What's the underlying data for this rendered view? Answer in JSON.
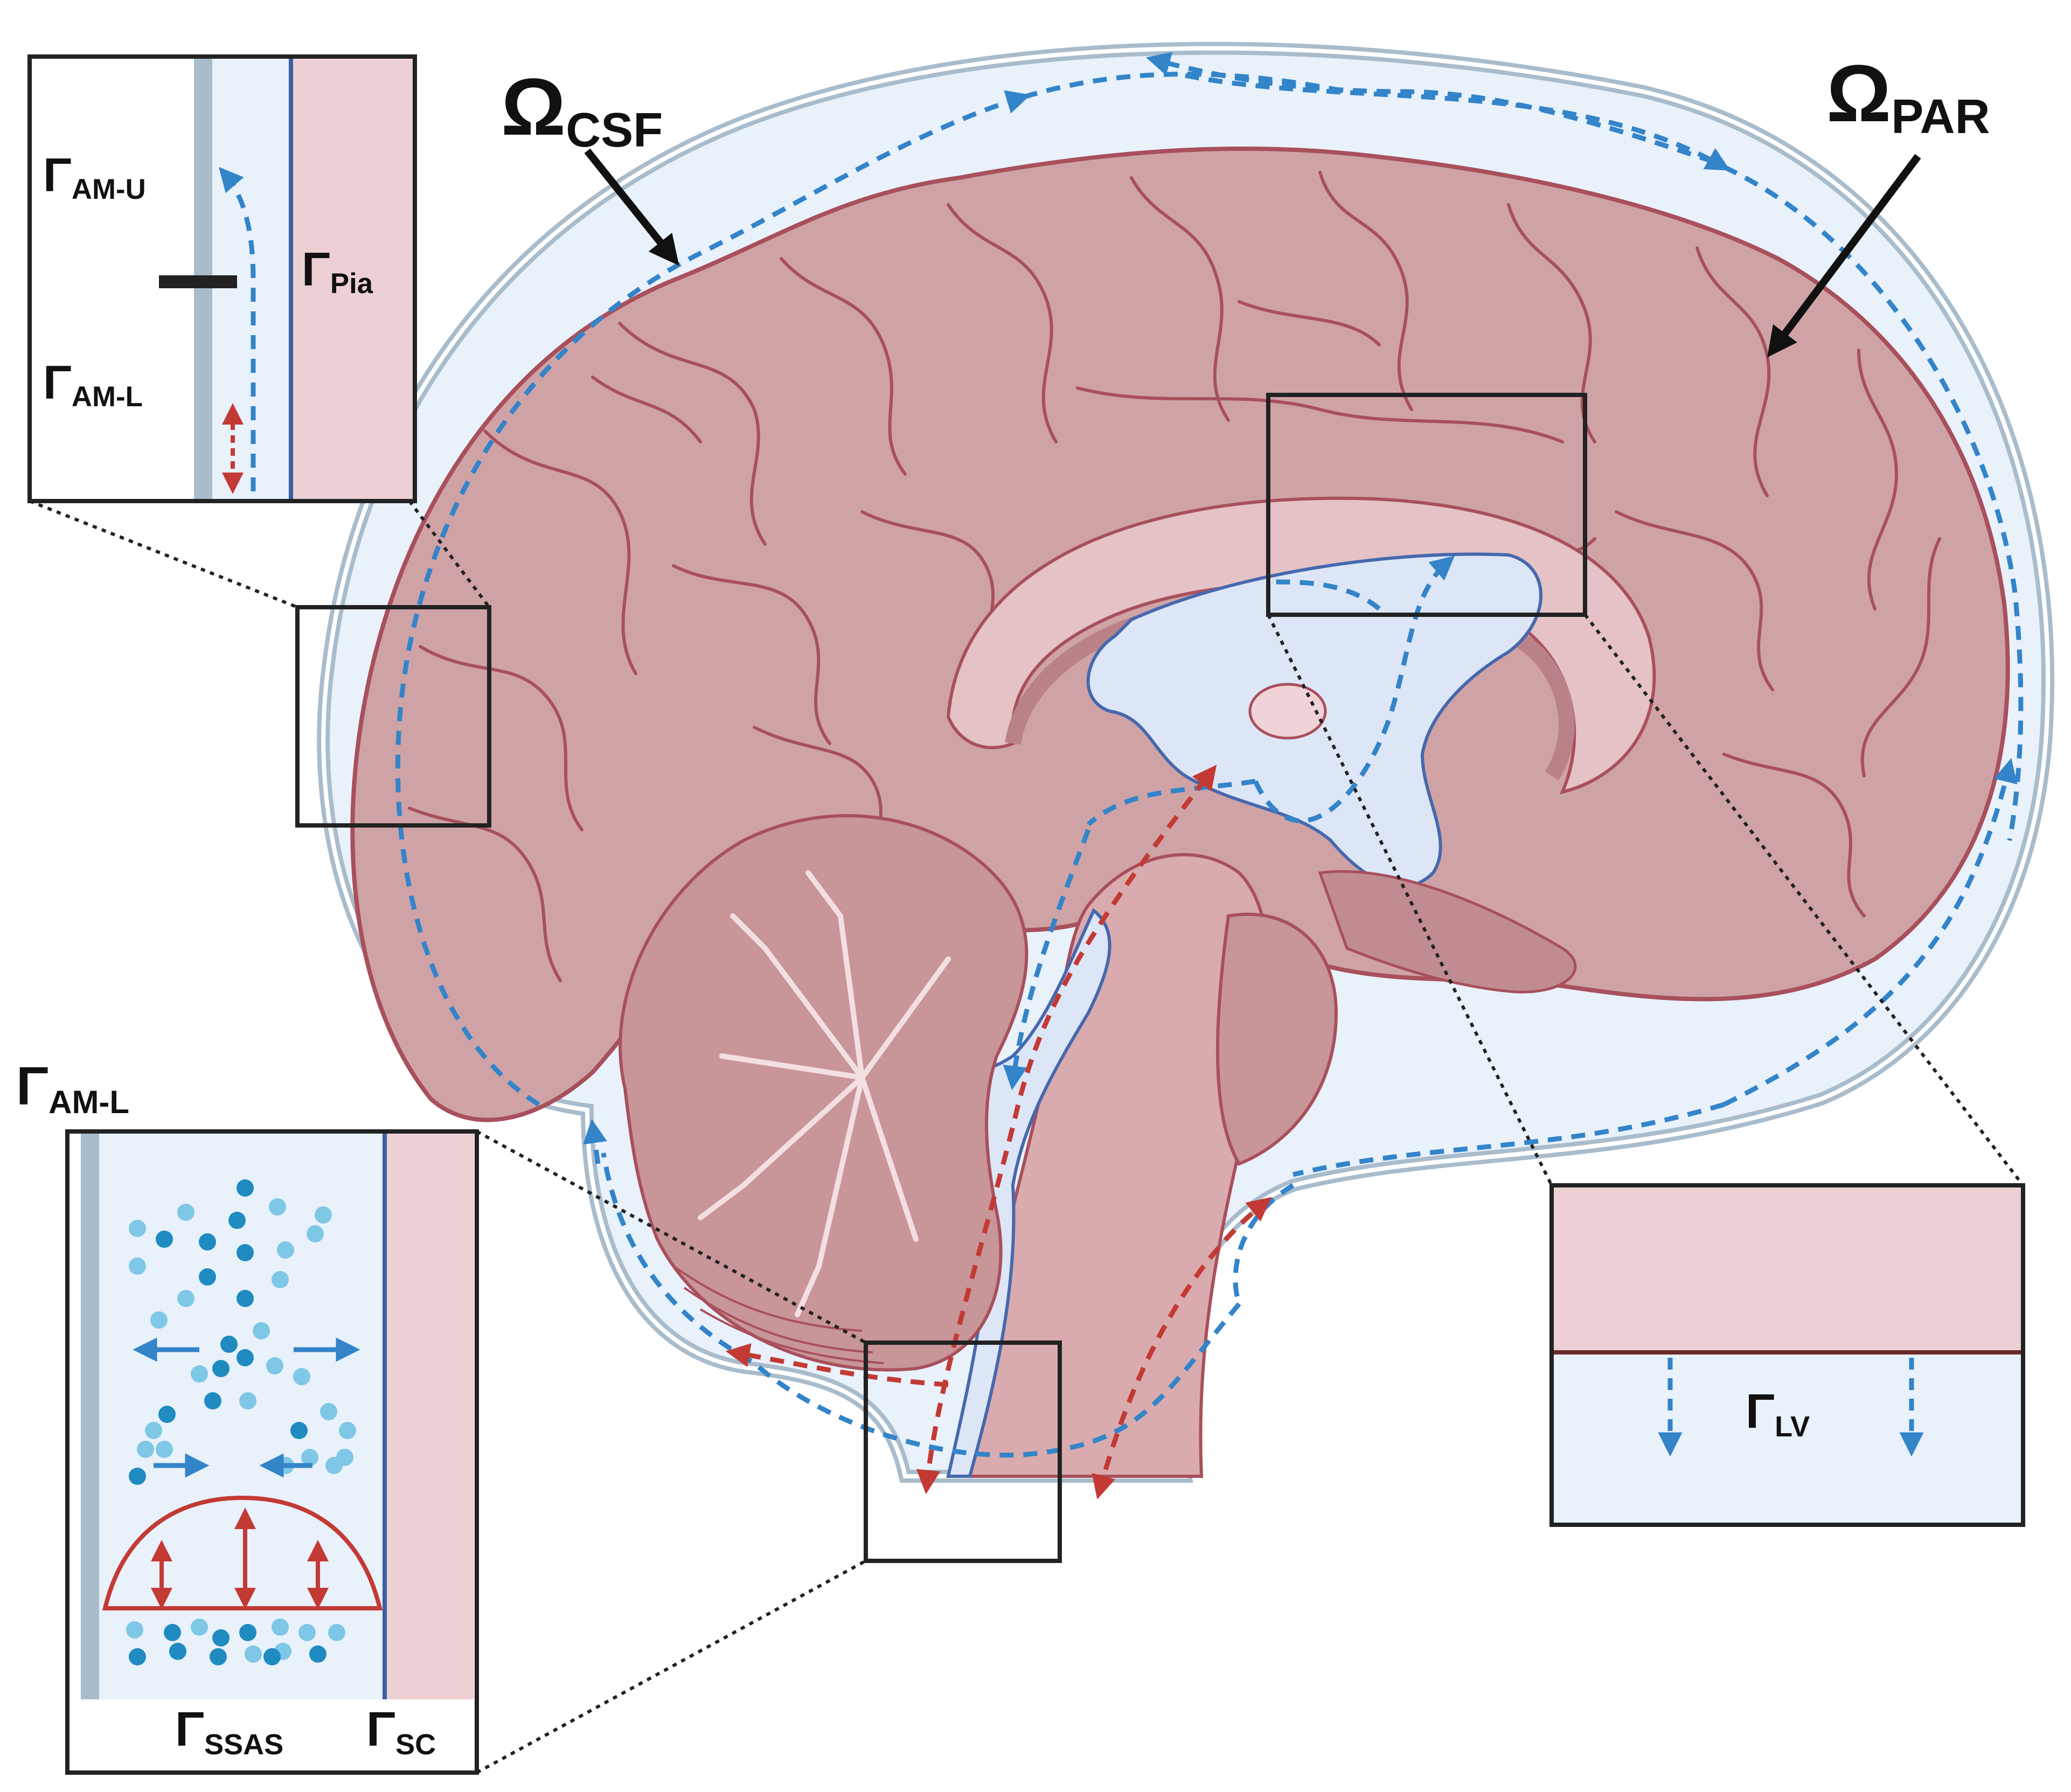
{
  "colors": {
    "brain": "#cfa3a6",
    "brain_dark": "#b98288",
    "brain_line": "#a8505c",
    "csf": "#e9f1fb",
    "ventricle": "#dde6f7",
    "ventricle_line": "#4668ad",
    "membrane": "#a9bccc",
    "flow_blue": "#3384c9",
    "flow_red": "#c33a35",
    "pia": "#3a5fa3",
    "parenchyma": "#ecd0d4",
    "particle_dark": "#1f8bc1",
    "particle_light": "#7fc7e6",
    "box": "#222222"
  },
  "labels": {
    "omega_csf": {
      "main": "Ω",
      "sub": "CSF"
    },
    "omega_par": {
      "main": "Ω",
      "sub": "PAR"
    },
    "gamma_am_u": {
      "main": "Γ",
      "sub": "AM-U"
    },
    "gamma_am_l_top": {
      "main": "Γ",
      "sub": "AM-L"
    },
    "gamma_pia": {
      "main": "Γ",
      "sub": "Pia"
    },
    "gamma_am_l_bottom": {
      "main": "Γ",
      "sub": "AM-L"
    },
    "gamma_ssas": {
      "main": "Γ",
      "sub": "SSAS"
    },
    "gamma_sc": {
      "main": "Γ",
      "sub": "SC"
    },
    "gamma_lv": {
      "main": "Γ",
      "sub": "LV"
    }
  },
  "icons": {
    "flow_arrow": "dashed-arrow",
    "oscillation_arrow": "double-headed-arrow"
  }
}
